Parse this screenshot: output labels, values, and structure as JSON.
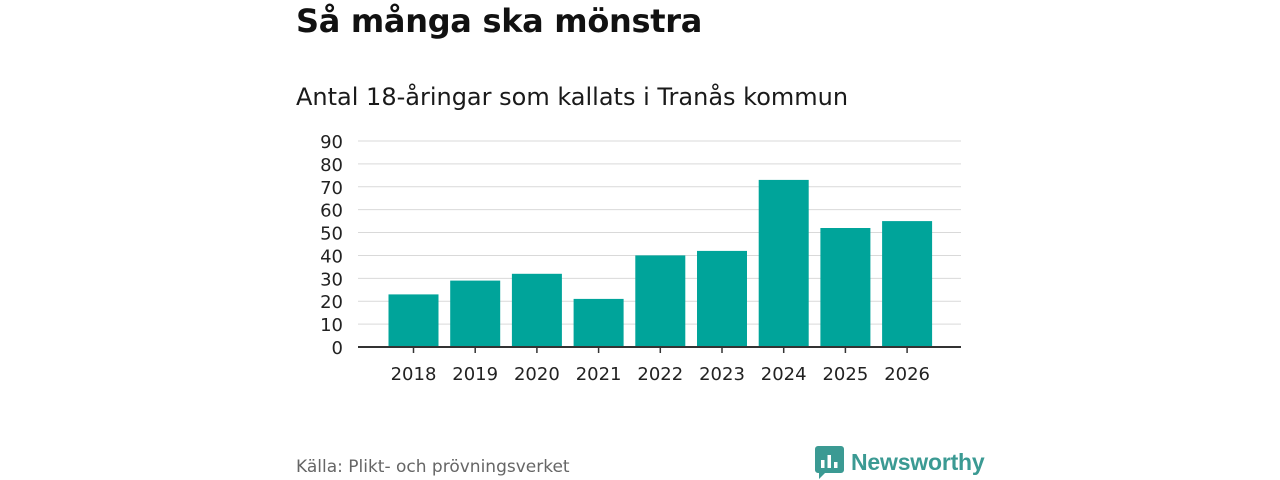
{
  "header": {
    "title": "Så många ska mönstra",
    "subtitle": "Antal 18-åringar som kallats i Tranås kommun"
  },
  "footer": {
    "source": "Källa: Plikt- och prövningsverket",
    "brand": "Newsworthy",
    "brand_icon": "bar-chart-logo-icon"
  },
  "colors": {
    "bar": "#00a49a",
    "grid": "#d9d9d9",
    "axis": "#333333",
    "brand": "#3b9a93"
  },
  "chart_data": {
    "type": "bar",
    "title": "Så många ska mönstra",
    "subtitle": "Antal 18-åringar som kallats i Tranås kommun",
    "xlabel": "",
    "ylabel": "",
    "categories": [
      "2018",
      "2019",
      "2020",
      "2021",
      "2022",
      "2023",
      "2024",
      "2025",
      "2026"
    ],
    "values": [
      23,
      29,
      32,
      21,
      40,
      42,
      73,
      52,
      55
    ],
    "ylim": [
      0,
      90
    ],
    "yticks": [
      0,
      10,
      20,
      30,
      40,
      50,
      60,
      70,
      80,
      90
    ],
    "grid": true,
    "legend": "none"
  }
}
